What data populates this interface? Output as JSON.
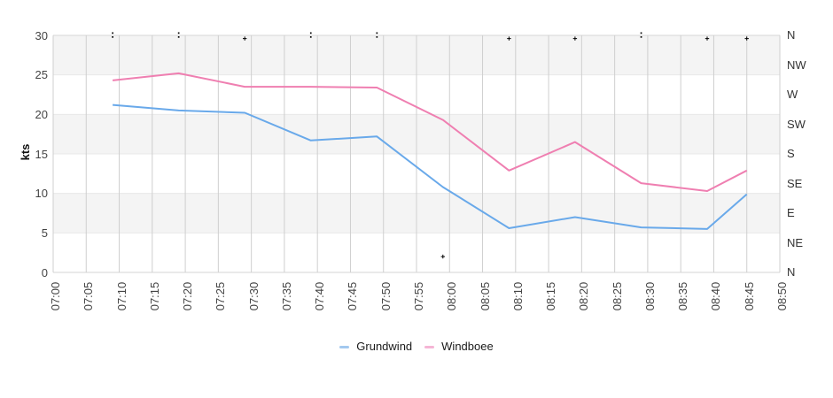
{
  "axis": {
    "y_left": {
      "title": "kts",
      "ticks": [
        0,
        5,
        10,
        15,
        20,
        25,
        30
      ],
      "min": 0,
      "max": 30
    },
    "y_right": {
      "labels_top_to_bottom": [
        "N",
        "NW",
        "W",
        "SW",
        "S",
        "SE",
        "E",
        "NE",
        "N"
      ]
    },
    "x": {
      "ticks": [
        "07:00",
        "07:05",
        "07:10",
        "07:15",
        "07:20",
        "07:25",
        "07:30",
        "07:35",
        "07:40",
        "07:45",
        "07:50",
        "07:55",
        "08:00",
        "08:05",
        "08:10",
        "08:15",
        "08:20",
        "08:25",
        "08:30",
        "08:35",
        "08:40",
        "08:45",
        "08:50"
      ]
    }
  },
  "chart_data": {
    "type": "line",
    "title": "",
    "xlabel": "",
    "ylabel": "kts",
    "ylim": [
      0,
      30
    ],
    "x_range": [
      "07:00",
      "08:50"
    ],
    "grid": true,
    "bands_kts": [
      [
        25,
        30
      ],
      [
        15,
        20
      ],
      [
        5,
        10
      ]
    ],
    "legend_position": "bottom-center",
    "x": [
      "07:09",
      "07:19",
      "07:29",
      "07:39",
      "07:49",
      "07:59",
      "08:09",
      "08:19",
      "08:29",
      "08:39",
      "08:45"
    ],
    "series": [
      {
        "name": "Grundwind",
        "color": "#69a9ea",
        "values": [
          21.2,
          20.5,
          20.2,
          16.7,
          17.2,
          10.8,
          5.6,
          7.0,
          5.7,
          5.5,
          9.9
        ]
      },
      {
        "name": "Windboee",
        "color": "#ef7fb1",
        "values": [
          24.3,
          25.2,
          23.5,
          23.5,
          23.4,
          19.3,
          12.9,
          16.5,
          11.3,
          10.3,
          12.9
        ]
      }
    ],
    "direction_markers": {
      "note": "small black markers read against right compass axis (0 kts = N, 30 kts = N)",
      "color": "#000000",
      "points": [
        {
          "t": "07:09",
          "style": "dots",
          "kts": [
            30.3,
            29.8
          ]
        },
        {
          "t": "07:19",
          "style": "dots",
          "kts": [
            30.3,
            29.8
          ]
        },
        {
          "t": "07:29",
          "style": "plus",
          "kts": [
            29.6
          ]
        },
        {
          "t": "07:39",
          "style": "dots",
          "kts": [
            30.3,
            29.8
          ]
        },
        {
          "t": "07:49",
          "style": "dots",
          "kts": [
            30.3,
            29.8
          ]
        },
        {
          "t": "07:59",
          "style": "plus",
          "kts": [
            2.0
          ]
        },
        {
          "t": "08:09",
          "style": "plus",
          "kts": [
            29.6
          ]
        },
        {
          "t": "08:19",
          "style": "plus",
          "kts": [
            29.6
          ]
        },
        {
          "t": "08:29",
          "style": "dots",
          "kts": [
            30.3,
            29.8
          ]
        },
        {
          "t": "08:39",
          "style": "plus",
          "kts": [
            29.6
          ]
        },
        {
          "t": "08:45",
          "style": "plus",
          "kts": [
            29.6
          ]
        }
      ]
    }
  },
  "legend": {
    "items": [
      {
        "label": "Grundwind",
        "swatch": "#a3c9ef"
      },
      {
        "label": "Windboee",
        "swatch": "#f5b5d5"
      }
    ]
  },
  "colors": {
    "band_fill": "#f4f4f4",
    "grid_vertical": "#cfcfcf",
    "grid_horizontal": "#e8e8e8",
    "axis_border": "#d6d6d6",
    "grundwind_line": "#69a9ea",
    "windboee_line": "#ef7fb1",
    "direction_marker": "#000000",
    "tick_text": "#444444",
    "compass_text": "#333333",
    "legend_text": "#1a1a1a"
  }
}
